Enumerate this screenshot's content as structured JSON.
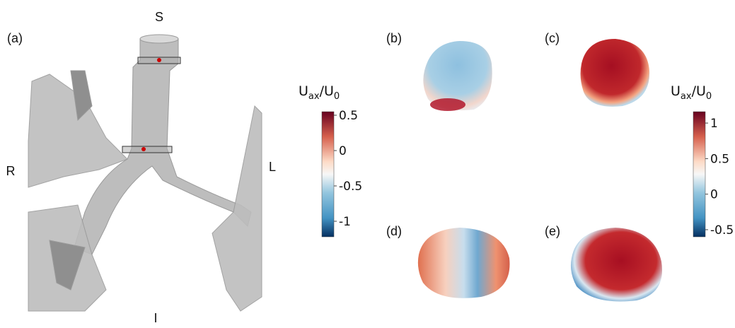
{
  "panels": {
    "a": "(a)",
    "b": "(b)",
    "c": "(c)",
    "d": "(d)",
    "e": "(e)"
  },
  "orientation": {
    "superior": "S",
    "inferior": "I",
    "right": "R",
    "left": "L"
  },
  "colorbars": [
    {
      "title": {
        "main": "U",
        "sub": "ax",
        "main2": "/U",
        "sub2": "0"
      },
      "lim": [
        -1.22,
        0.55
      ],
      "ticks": [
        0.5,
        0,
        -0.5,
        -1
      ]
    },
    {
      "title": {
        "main": "U",
        "sub": "ax",
        "main2": "/U",
        "sub2": "0"
      },
      "lim": [
        -0.6,
        1.16
      ],
      "ticks": [
        1,
        0.5,
        0,
        -0.5
      ]
    }
  ]
}
